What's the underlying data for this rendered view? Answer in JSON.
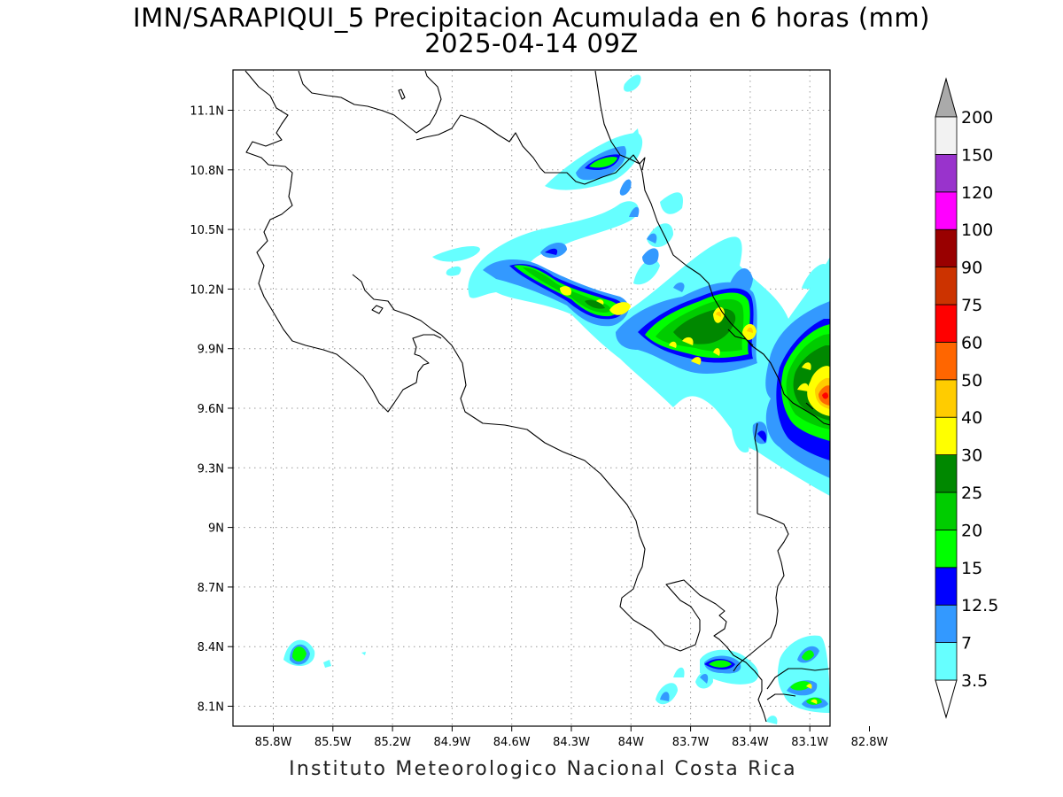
{
  "title": {
    "line1": "IMN/SARAPIQUI_5 Precipitacion Acumulada en 6 horas (mm)",
    "line2": "2025-04-14 09Z"
  },
  "footer": "Instituto Meteorologico Nacional Costa Rica",
  "map": {
    "lon_ticks": [
      "85.8W",
      "85.5W",
      "85.2W",
      "84.9W",
      "84.6W",
      "84.3W",
      "84W",
      "83.7W",
      "83.4W",
      "83.1W",
      "82.8W"
    ],
    "lat_ticks": [
      "11.1N",
      "10.8N",
      "10.5N",
      "10.2N",
      "9.9N",
      "9.6N",
      "9.3N",
      "9N",
      "8.7N",
      "8.4N",
      "8.1N"
    ],
    "grid": true
  },
  "colorbar": {
    "levels": [
      "3.5",
      "7",
      "12.5",
      "15",
      "20",
      "25",
      "30",
      "40",
      "50",
      "60",
      "75",
      "90",
      "100",
      "120",
      "150",
      "200"
    ],
    "colors": [
      "#66ffff",
      "#3399ff",
      "#0000ff",
      "#00ff00",
      "#00cc00",
      "#008800",
      "#ffff00",
      "#ffcc00",
      "#ff6600",
      "#ff0000",
      "#cc3300",
      "#990000",
      "#ff00ff",
      "#9933cc",
      "#f2f2f2",
      "#aaaaaa"
    ],
    "under_color": "#ffffff"
  }
}
